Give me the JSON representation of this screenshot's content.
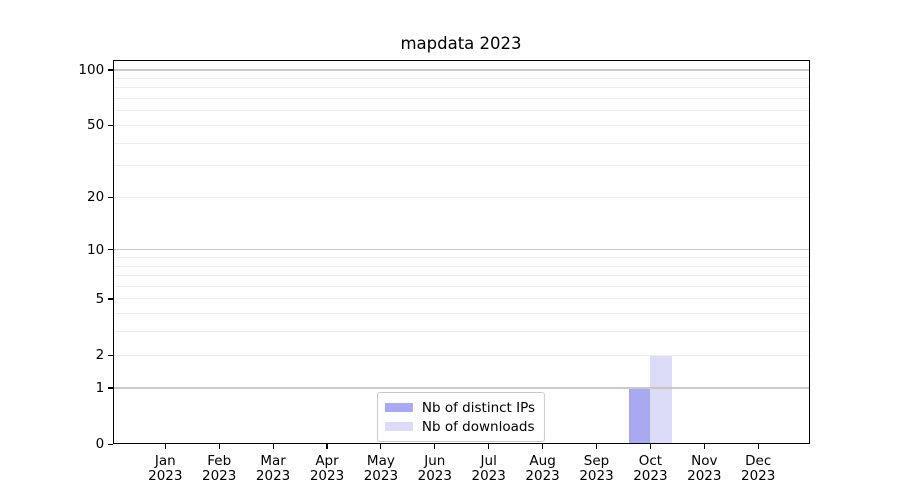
{
  "chart_data": {
    "type": "bar",
    "title": "mapdata 2023",
    "categories": [
      "Jan",
      "Feb",
      "Mar",
      "Apr",
      "May",
      "Jun",
      "Jul",
      "Aug",
      "Sep",
      "Oct",
      "Nov",
      "Dec"
    ],
    "x_year": "2023",
    "series": [
      {
        "name": "Nb of distinct IPs",
        "color": "#a9a9f2",
        "values": [
          0,
          0,
          0,
          0,
          0,
          0,
          0,
          0,
          0,
          1,
          0,
          0
        ]
      },
      {
        "name": "Nb of downloads",
        "color": "#dcdcf8",
        "values": [
          0,
          0,
          0,
          0,
          0,
          0,
          0,
          0,
          0,
          2,
          0,
          0
        ]
      }
    ],
    "y_axis": {
      "scale": "log1p",
      "tick_values": [
        0,
        1,
        2,
        5,
        10,
        20,
        50,
        100
      ],
      "tick_labels": [
        "0",
        "1",
        "2",
        "5",
        "10",
        "20",
        "50",
        "100"
      ],
      "range_top_value": 114
    },
    "grid": {
      "major_values": [
        1,
        10,
        100
      ],
      "minor_values": [
        2,
        3,
        4,
        5,
        6,
        7,
        8,
        9,
        20,
        30,
        40,
        50,
        60,
        70,
        80,
        90
      ],
      "major_color": "#c9c9c9",
      "minor_color": "#ededed"
    },
    "legend": {
      "position": "lower center",
      "labels": [
        "Nb of distinct IPs",
        "Nb of downloads"
      ]
    },
    "colors": {
      "background": "#ffffff",
      "spine": "#000000",
      "text": "#000000"
    }
  }
}
